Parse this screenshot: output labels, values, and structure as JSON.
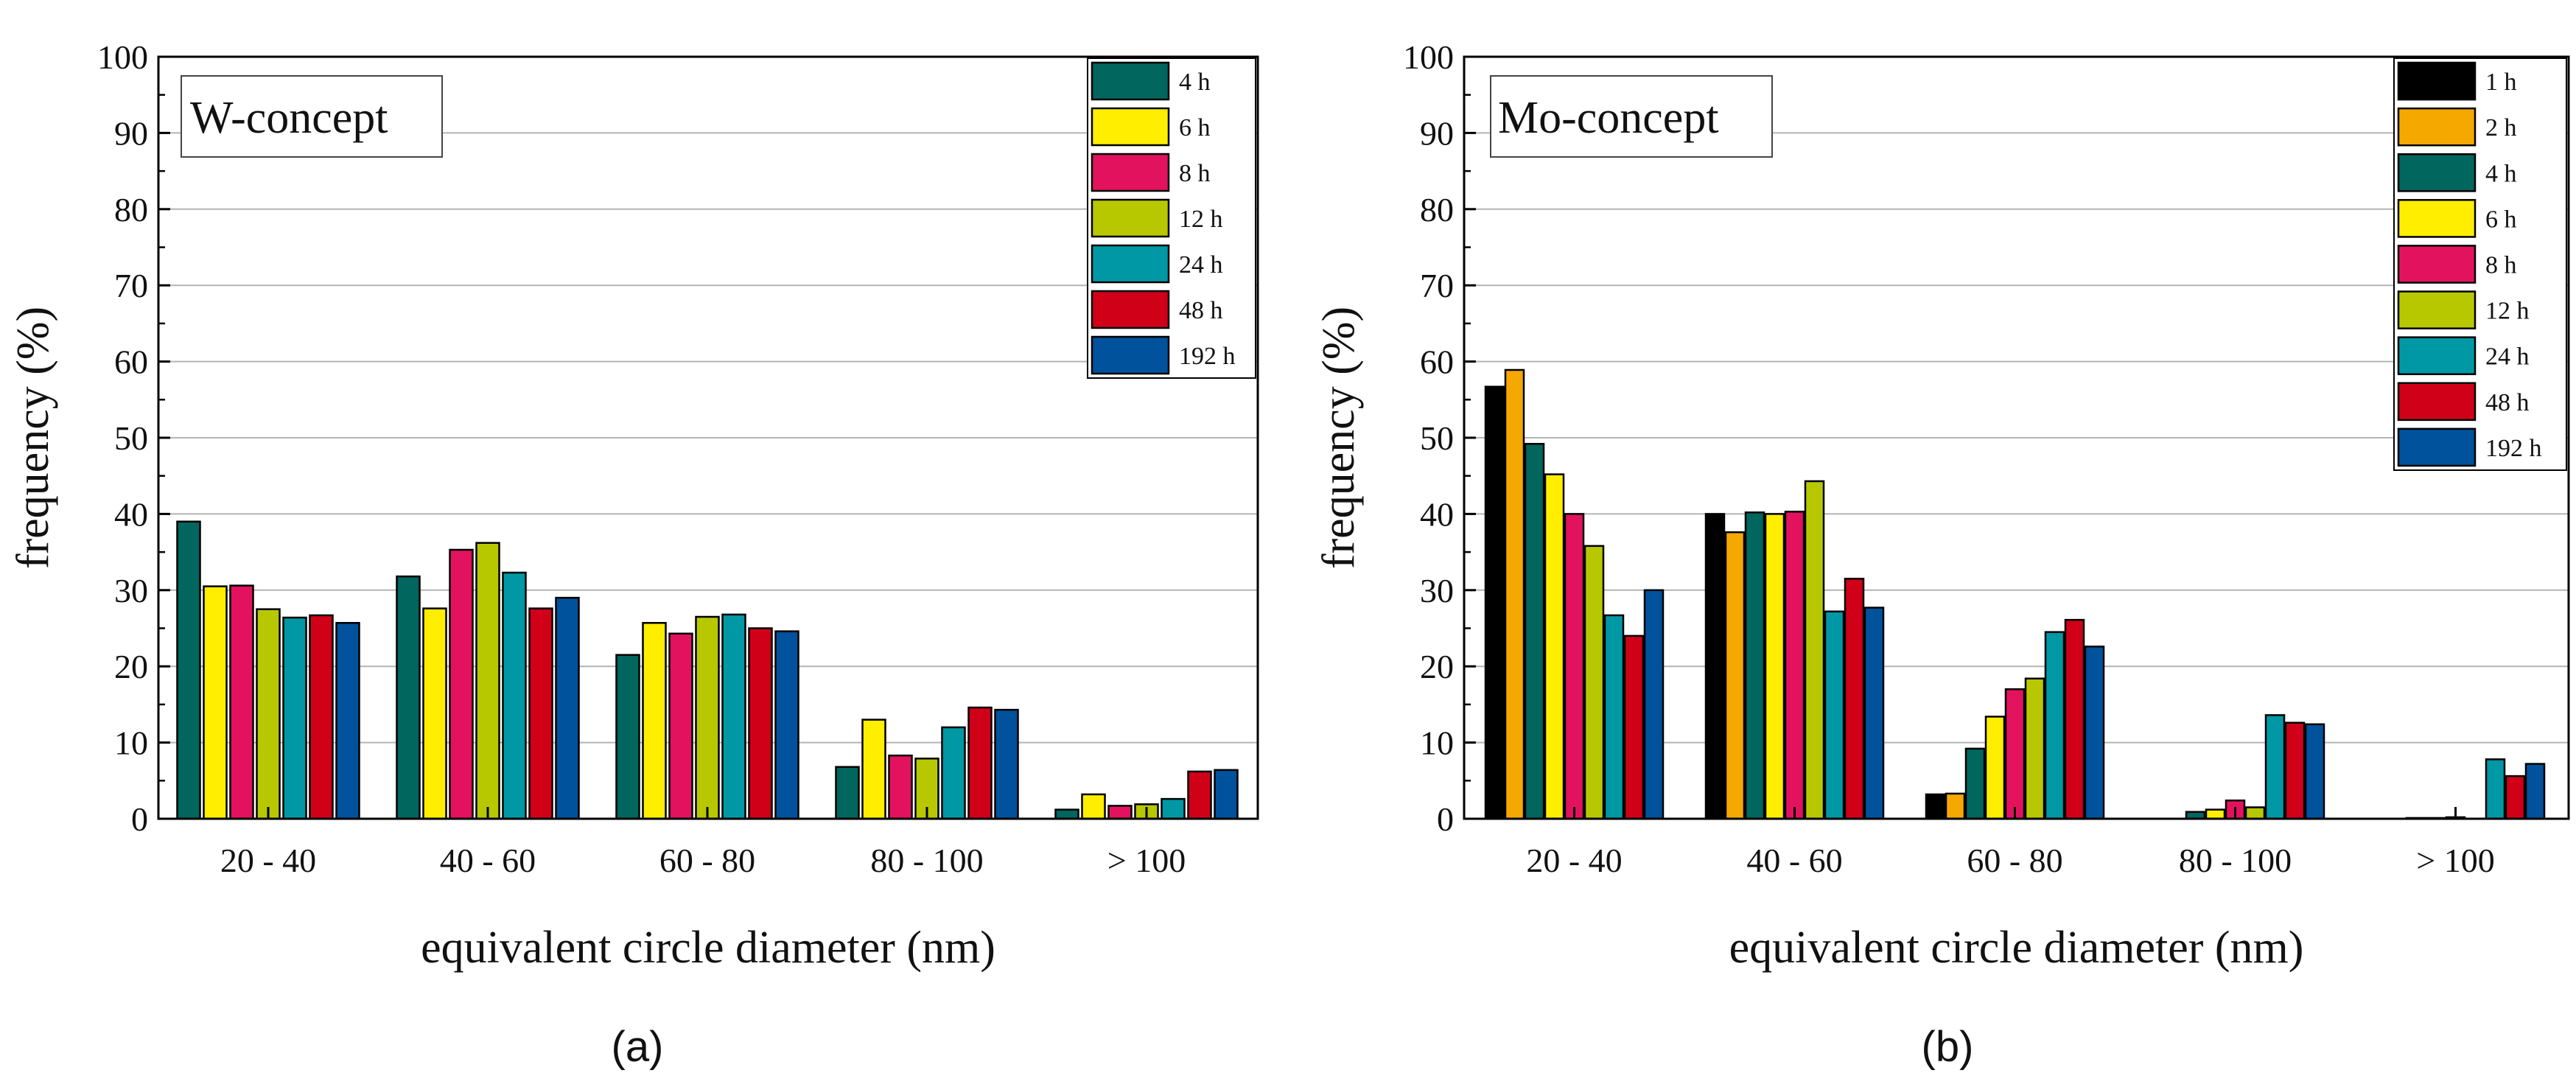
{
  "colors": {
    "1 h": "#000000",
    "2 h": "#f5a800",
    "4 h": "#00665e",
    "6 h": "#ffee00",
    "8 h": "#e3125f",
    "12 h": "#b8c800",
    "24 h": "#0098a4",
    "48 h": "#d00018",
    "192 h": "#00529c"
  },
  "chart_data": [
    {
      "type": "bar",
      "panel_label": "(a)",
      "title": "W-concept",
      "xlabel": "equivalent circle diameter (nm)",
      "ylabel": "frequency (%)",
      "ylim": [
        0,
        100
      ],
      "yticks": [
        "0",
        "10",
        "20",
        "30",
        "40",
        "50",
        "60",
        "70",
        "80",
        "90",
        "100"
      ],
      "grid": true,
      "legend": "top-right",
      "categories": [
        "20 - 40",
        "40 - 60",
        "60 - 80",
        "80 - 100",
        "> 100"
      ],
      "series": [
        {
          "name": "4 h",
          "values": [
            39.0,
            31.8,
            21.5,
            6.8,
            1.2
          ]
        },
        {
          "name": "6 h",
          "values": [
            30.5,
            27.6,
            25.7,
            13.0,
            3.2
          ]
        },
        {
          "name": "8 h",
          "values": [
            30.6,
            35.3,
            24.3,
            8.3,
            1.7
          ]
        },
        {
          "name": "12 h",
          "values": [
            27.5,
            36.2,
            26.5,
            7.9,
            1.9
          ]
        },
        {
          "name": "24 h",
          "values": [
            26.4,
            32.3,
            26.8,
            12.0,
            2.6
          ]
        },
        {
          "name": "48 h",
          "values": [
            26.7,
            27.6,
            25.0,
            14.6,
            6.2
          ]
        },
        {
          "name": "192 h",
          "values": [
            25.7,
            29.0,
            24.6,
            14.3,
            6.4
          ]
        }
      ]
    },
    {
      "type": "bar",
      "panel_label": "(b)",
      "title": "Mo-concept",
      "xlabel": "equivalent circle diameter (nm)",
      "ylabel": "frequency (%)",
      "ylim": [
        0,
        100
      ],
      "yticks": [
        "0",
        "10",
        "20",
        "30",
        "40",
        "50",
        "60",
        "70",
        "80",
        "90",
        "100"
      ],
      "grid": true,
      "legend": "top-right",
      "categories": [
        "20 - 40",
        "40 - 60",
        "60 - 80",
        "80 - 100",
        "> 100"
      ],
      "series": [
        {
          "name": "1 h",
          "values": [
            56.7,
            40.0,
            3.2,
            0.0,
            0.0
          ]
        },
        {
          "name": "2 h",
          "values": [
            58.9,
            37.6,
            3.3,
            0.0,
            0.0
          ]
        },
        {
          "name": "4 h",
          "values": [
            49.2,
            40.2,
            9.2,
            0.9,
            0.1
          ]
        },
        {
          "name": "6 h",
          "values": [
            45.2,
            40.0,
            13.4,
            1.2,
            0.1
          ]
        },
        {
          "name": "8 h",
          "values": [
            40.0,
            40.3,
            17.0,
            2.4,
            0.2
          ]
        },
        {
          "name": "12 h",
          "values": [
            35.8,
            44.3,
            18.4,
            1.5,
            0.0
          ]
        },
        {
          "name": "24 h",
          "values": [
            26.7,
            27.2,
            24.5,
            13.6,
            7.8
          ]
        },
        {
          "name": "48 h",
          "values": [
            24.0,
            31.5,
            26.1,
            12.6,
            5.6
          ]
        },
        {
          "name": "192 h",
          "values": [
            30.0,
            27.7,
            22.6,
            12.4,
            7.2
          ]
        }
      ]
    }
  ]
}
